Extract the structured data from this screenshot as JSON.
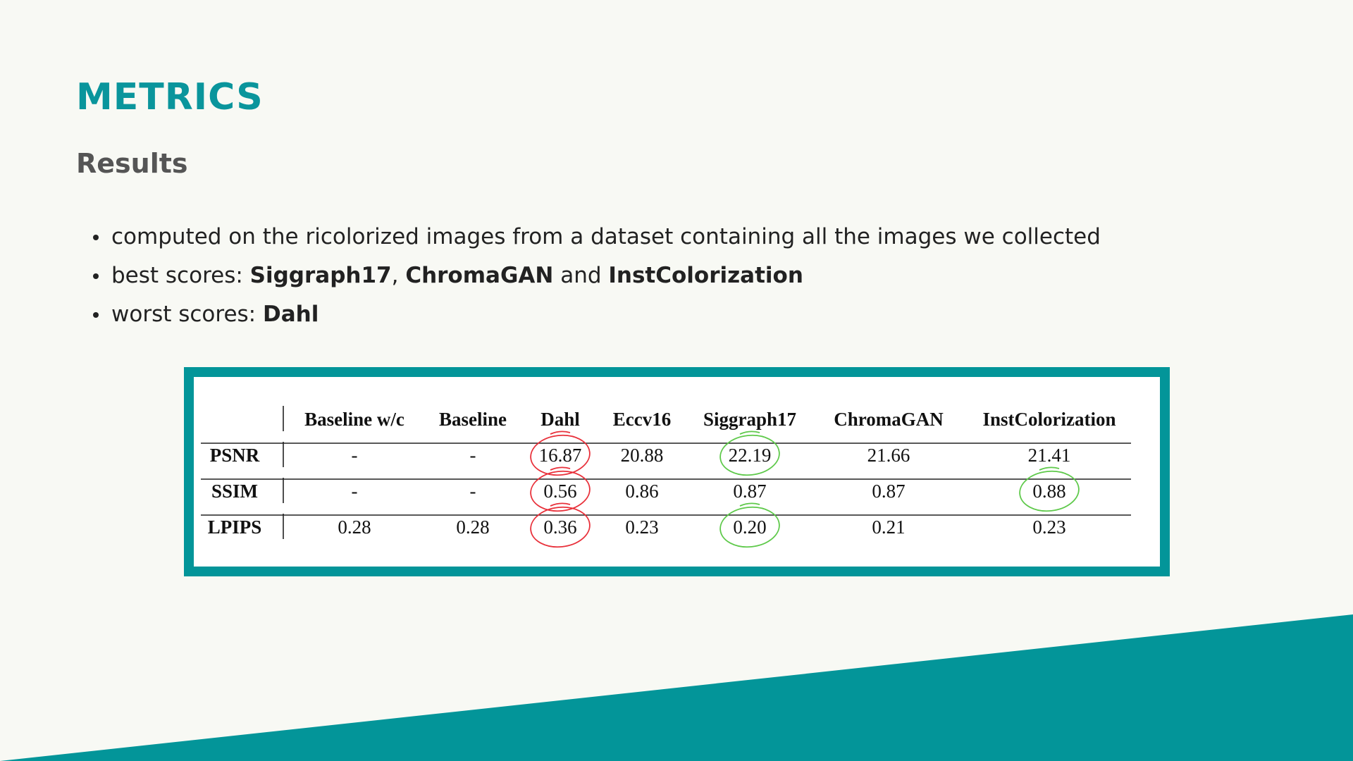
{
  "slide": {
    "title": "METRICS",
    "subtitle": "Results",
    "bullets": {
      "b1": "computed on the ricolorized images from a dataset containing all the images we collected",
      "b2_prefix": "best scores: ",
      "b2_m1": "Siggraph17",
      "b2_sep": ", ",
      "b2_m2": "ChromaGAN",
      "b2_and": " and ",
      "b2_m3": "InstColorization",
      "b3_prefix": "worst scores: ",
      "b3_m1": "Dahl"
    }
  },
  "table": {
    "columns": [
      "Baseline w/c",
      "Baseline",
      "Dahl",
      "Eccv16",
      "Siggraph17",
      "ChromaGAN",
      "InstColorization"
    ],
    "rows": [
      {
        "label": "PSNR",
        "values": [
          "-",
          "-",
          "16.87",
          "20.88",
          "22.19",
          "21.66",
          "21.41"
        ]
      },
      {
        "label": "SSIM",
        "values": [
          "-",
          "-",
          "0.56",
          "0.86",
          "0.87",
          "0.87",
          "0.88"
        ]
      },
      {
        "label": "LPIPS",
        "values": [
          "0.28",
          "0.28",
          "0.36",
          "0.23",
          "0.20",
          "0.21",
          "0.23"
        ]
      }
    ],
    "highlights_worst": [
      [
        0,
        2
      ],
      [
        1,
        2
      ],
      [
        2,
        2
      ]
    ],
    "highlights_best": [
      [
        0,
        4
      ],
      [
        1,
        6
      ],
      [
        2,
        4
      ]
    ]
  },
  "colors": {
    "accent": "#0a959c",
    "band": "#039599",
    "worst_circle": "#e8303a",
    "best_circle": "#5ec94a"
  }
}
